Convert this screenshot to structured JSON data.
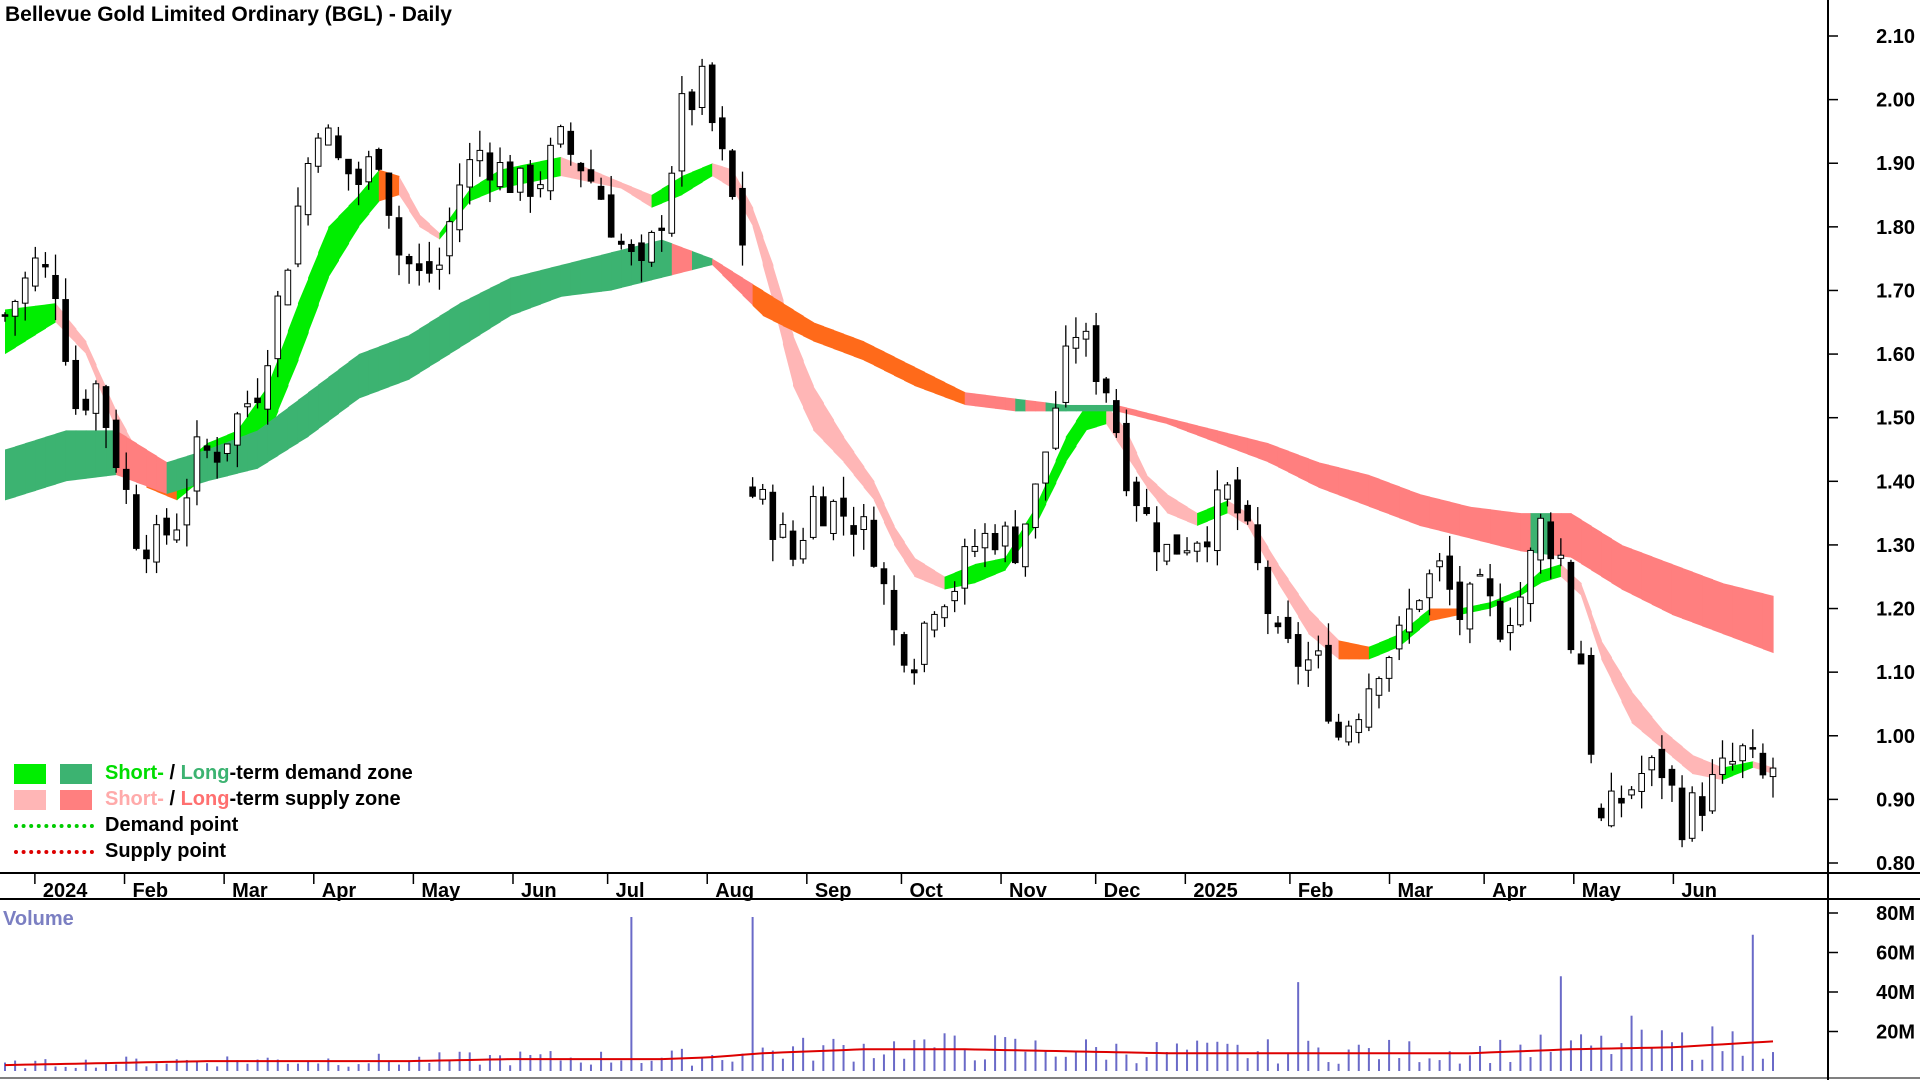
{
  "title": "Bellevue Gold Limited Ordinary (BGL) - Daily",
  "colors": {
    "short_demand": "#00ee00",
    "long_demand": "#3cb371",
    "short_supply": "#ffb6b6",
    "long_supply": "#ff7f7f",
    "transition": "#ff6a1a",
    "volume": "#6a6ac8",
    "volume_ma": "#dd0000",
    "candle": "#000000"
  },
  "legend": {
    "demand_zone": {
      "short": "Short-",
      "sep": " / ",
      "long": "Long",
      "rest": "-term demand zone"
    },
    "supply_zone": {
      "short": "Short-",
      "sep": " / ",
      "long": "Long",
      "rest": "-term supply zone"
    },
    "demand_point": "Demand point",
    "supply_point": "Supply point"
  },
  "volume_label": "Volume",
  "chart_data": {
    "type": "candlestick",
    "x_ticks": [
      "2024",
      "Feb",
      "Mar",
      "Apr",
      "May",
      "Jun",
      "Jul",
      "Aug",
      "Sep",
      "Oct",
      "Nov",
      "Dec",
      "2025",
      "Feb",
      "Mar",
      "Apr",
      "May",
      "Jun"
    ],
    "y_ticks": [
      "2.10",
      "2.00",
      "1.90",
      "1.80",
      "1.70",
      "1.60",
      "1.50",
      "1.40",
      "1.30",
      "1.20",
      "1.10",
      "1.00",
      "0.90",
      "0.80"
    ],
    "ylim": [
      0.78,
      2.13
    ],
    "volume_ticks": [
      "80M",
      "60M",
      "40M",
      "20M"
    ],
    "volume_ylim": [
      0,
      85
    ],
    "close_path": [
      [
        0,
        1.66
      ],
      [
        3,
        1.74
      ],
      [
        5,
        1.71
      ],
      [
        7,
        1.52
      ],
      [
        9,
        1.55
      ],
      [
        11,
        1.44
      ],
      [
        13,
        1.32
      ],
      [
        15,
        1.3
      ],
      [
        17,
        1.34
      ],
      [
        19,
        1.44
      ],
      [
        21,
        1.45
      ],
      [
        23,
        1.5
      ],
      [
        25,
        1.55
      ],
      [
        27,
        1.68
      ],
      [
        29,
        1.83
      ],
      [
        31,
        1.97
      ],
      [
        33,
        1.9
      ],
      [
        35,
        1.87
      ],
      [
        37,
        1.92
      ],
      [
        39,
        1.76
      ],
      [
        41,
        1.72
      ],
      [
        43,
        1.74
      ],
      [
        45,
        1.87
      ],
      [
        47,
        1.92
      ],
      [
        49,
        1.89
      ],
      [
        51,
        1.86
      ],
      [
        53,
        1.88
      ],
      [
        55,
        1.93
      ],
      [
        57,
        1.9
      ],
      [
        59,
        1.85
      ],
      [
        61,
        1.77
      ],
      [
        63,
        1.72
      ],
      [
        65,
        1.82
      ],
      [
        67,
        1.98
      ],
      [
        69,
        2.02
      ],
      [
        71,
        1.9
      ],
      [
        73,
        1.78
      ],
      [
        74,
        1.38
      ],
      [
        76,
        1.34
      ],
      [
        78,
        1.28
      ],
      [
        80,
        1.37
      ],
      [
        82,
        1.36
      ],
      [
        84,
        1.34
      ],
      [
        86,
        1.3
      ],
      [
        88,
        1.16
      ],
      [
        90,
        1.13
      ],
      [
        92,
        1.22
      ],
      [
        94,
        1.24
      ],
      [
        96,
        1.3
      ],
      [
        98,
        1.32
      ],
      [
        100,
        1.3
      ],
      [
        102,
        1.38
      ],
      [
        104,
        1.52
      ],
      [
        106,
        1.64
      ],
      [
        107,
        1.61
      ],
      [
        109,
        1.55
      ],
      [
        111,
        1.42
      ],
      [
        113,
        1.34
      ],
      [
        115,
        1.29
      ],
      [
        117,
        1.31
      ],
      [
        119,
        1.33
      ],
      [
        121,
        1.38
      ],
      [
        122,
        1.35
      ],
      [
        124,
        1.26
      ],
      [
        126,
        1.14
      ],
      [
        128,
        1.12
      ],
      [
        130,
        1.11
      ],
      [
        132,
        1.0
      ],
      [
        134,
        1.05
      ],
      [
        136,
        1.12
      ],
      [
        138,
        1.15
      ],
      [
        140,
        1.23
      ],
      [
        142,
        1.26
      ],
      [
        144,
        1.19
      ],
      [
        146,
        1.22
      ],
      [
        148,
        1.18
      ],
      [
        150,
        1.22
      ],
      [
        152,
        1.33
      ],
      [
        154,
        1.28
      ],
      [
        155,
        1.15
      ],
      [
        156,
        1.12
      ],
      [
        158,
        0.86
      ],
      [
        160,
        0.9
      ],
      [
        162,
        0.94
      ],
      [
        164,
        0.95
      ],
      [
        166,
        0.87
      ],
      [
        168,
        0.9
      ],
      [
        170,
        0.94
      ],
      [
        172,
        0.97
      ],
      [
        174,
        0.93
      ],
      [
        175,
        0.95
      ]
    ],
    "bands": [
      {
        "name": "Short-term",
        "points": [
          [
            0,
            1.6,
            1.67
          ],
          [
            5,
            1.65,
            1.68
          ],
          [
            8,
            1.6,
            1.62
          ],
          [
            11,
            1.48,
            1.51
          ],
          [
            14,
            1.39,
            1.42
          ],
          [
            17,
            1.37,
            1.42
          ],
          [
            20,
            1.41,
            1.46
          ],
          [
            23,
            1.43,
            1.48
          ],
          [
            26,
            1.47,
            1.55
          ],
          [
            29,
            1.59,
            1.68
          ],
          [
            32,
            1.72,
            1.8
          ],
          [
            35,
            1.8,
            1.85
          ],
          [
            37,
            1.84,
            1.89
          ],
          [
            39,
            1.85,
            1.88
          ],
          [
            41,
            1.8,
            1.82
          ],
          [
            43,
            1.78,
            1.79
          ],
          [
            46,
            1.84,
            1.86
          ],
          [
            49,
            1.86,
            1.89
          ],
          [
            52,
            1.87,
            1.9
          ],
          [
            55,
            1.88,
            1.91
          ],
          [
            58,
            1.87,
            1.89
          ],
          [
            61,
            1.86,
            1.87
          ],
          [
            64,
            1.83,
            1.85
          ],
          [
            67,
            1.85,
            1.88
          ],
          [
            70,
            1.88,
            1.9
          ],
          [
            72,
            1.86,
            1.89
          ],
          [
            74,
            1.8,
            1.83
          ],
          [
            76,
            1.68,
            1.74
          ],
          [
            78,
            1.55,
            1.63
          ],
          [
            80,
            1.48,
            1.55
          ],
          [
            83,
            1.43,
            1.47
          ],
          [
            86,
            1.37,
            1.4
          ],
          [
            88,
            1.3,
            1.33
          ],
          [
            90,
            1.25,
            1.28
          ],
          [
            93,
            1.23,
            1.25
          ],
          [
            96,
            1.24,
            1.27
          ],
          [
            99,
            1.26,
            1.28
          ],
          [
            102,
            1.33,
            1.36
          ],
          [
            105,
            1.43,
            1.47
          ],
          [
            107,
            1.48,
            1.52
          ],
          [
            109,
            1.49,
            1.52
          ],
          [
            111,
            1.44,
            1.48
          ],
          [
            113,
            1.39,
            1.41
          ],
          [
            115,
            1.35,
            1.38
          ],
          [
            118,
            1.33,
            1.35
          ],
          [
            121,
            1.35,
            1.37
          ],
          [
            123,
            1.33,
            1.35
          ],
          [
            126,
            1.24,
            1.27
          ],
          [
            129,
            1.16,
            1.2
          ],
          [
            132,
            1.12,
            1.15
          ],
          [
            135,
            1.12,
            1.14
          ],
          [
            138,
            1.14,
            1.16
          ],
          [
            141,
            1.18,
            1.2
          ],
          [
            144,
            1.19,
            1.2
          ],
          [
            147,
            1.2,
            1.21
          ],
          [
            150,
            1.22,
            1.23
          ],
          [
            152,
            1.24,
            1.26
          ],
          [
            154,
            1.25,
            1.27
          ],
          [
            156,
            1.22,
            1.24
          ],
          [
            158,
            1.12,
            1.15
          ],
          [
            161,
            1.02,
            1.07
          ],
          [
            164,
            0.98,
            1.01
          ],
          [
            167,
            0.94,
            0.97
          ],
          [
            170,
            0.93,
            0.95
          ],
          [
            173,
            0.95,
            0.96
          ],
          [
            175,
            0.94,
            0.95
          ]
        ]
      },
      {
        "name": "Long-term",
        "points": [
          [
            0,
            1.37,
            1.45
          ],
          [
            6,
            1.4,
            1.48
          ],
          [
            11,
            1.41,
            1.48
          ],
          [
            16,
            1.38,
            1.43
          ],
          [
            20,
            1.4,
            1.45
          ],
          [
            25,
            1.42,
            1.48
          ],
          [
            30,
            1.47,
            1.54
          ],
          [
            35,
            1.53,
            1.6
          ],
          [
            40,
            1.56,
            1.63
          ],
          [
            45,
            1.61,
            1.68
          ],
          [
            50,
            1.66,
            1.72
          ],
          [
            55,
            1.69,
            1.74
          ],
          [
            60,
            1.7,
            1.76
          ],
          [
            65,
            1.72,
            1.78
          ],
          [
            70,
            1.74,
            1.75
          ],
          [
            75,
            1.66,
            1.7
          ],
          [
            80,
            1.62,
            1.65
          ],
          [
            85,
            1.59,
            1.62
          ],
          [
            90,
            1.55,
            1.58
          ],
          [
            95,
            1.52,
            1.54
          ],
          [
            100,
            1.51,
            1.53
          ],
          [
            105,
            1.51,
            1.52
          ],
          [
            110,
            1.51,
            1.52
          ],
          [
            115,
            1.49,
            1.5
          ],
          [
            120,
            1.46,
            1.48
          ],
          [
            125,
            1.43,
            1.46
          ],
          [
            130,
            1.39,
            1.43
          ],
          [
            135,
            1.36,
            1.41
          ],
          [
            140,
            1.33,
            1.38
          ],
          [
            145,
            1.31,
            1.36
          ],
          [
            150,
            1.29,
            1.35
          ],
          [
            155,
            1.28,
            1.35
          ],
          [
            160,
            1.23,
            1.3
          ],
          [
            165,
            1.19,
            1.27
          ],
          [
            170,
            1.16,
            1.24
          ],
          [
            175,
            1.13,
            1.22
          ]
        ]
      }
    ],
    "volume_path": [
      [
        0,
        3
      ],
      [
        10,
        4
      ],
      [
        20,
        5
      ],
      [
        30,
        5
      ],
      [
        40,
        5
      ],
      [
        50,
        6
      ],
      [
        60,
        6
      ],
      [
        65,
        6
      ],
      [
        70,
        7
      ],
      [
        75,
        9
      ],
      [
        85,
        11
      ],
      [
        95,
        11
      ],
      [
        105,
        10
      ],
      [
        115,
        9
      ],
      [
        125,
        9
      ],
      [
        135,
        9
      ],
      [
        145,
        9
      ],
      [
        155,
        11
      ],
      [
        165,
        12
      ],
      [
        175,
        15
      ]
    ],
    "volume_spikes": [
      [
        62,
        78
      ],
      [
        74,
        78
      ],
      [
        91,
        16
      ],
      [
        128,
        45
      ],
      [
        154,
        48
      ],
      [
        173,
        69
      ],
      [
        161,
        28
      ]
    ]
  }
}
